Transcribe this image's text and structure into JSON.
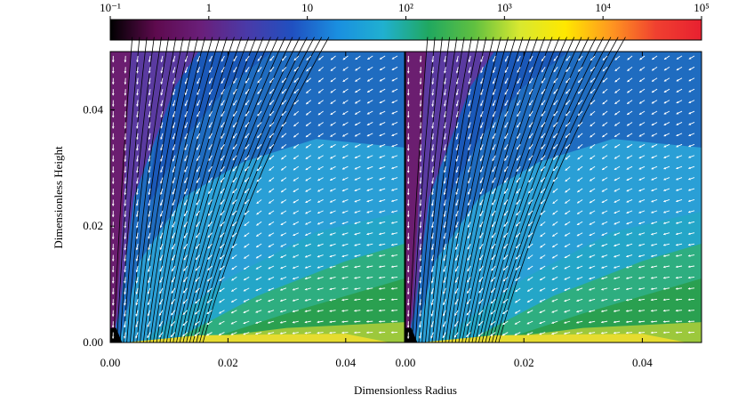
{
  "figure": {
    "xlabel": "Dimensionless Radius",
    "colorbar": {
      "scale": "log",
      "lim": [
        0.1,
        100000
      ],
      "ticks": [
        {
          "value": 0.1,
          "label": "10⁻¹"
        },
        1,
        10,
        {
          "value": 100,
          "label": "10²"
        },
        {
          "value": 1000,
          "label": "10³"
        },
        {
          "value": 10000,
          "label": "10⁴"
        },
        {
          "value": 100000,
          "label": "10⁵"
        }
      ],
      "colors": [
        "#000000",
        "#5e0a4e",
        "#6a1f7a",
        "#4a3aa8",
        "#2050c0",
        "#1a8fe0",
        "#20b0d0",
        "#20a860",
        "#60c040",
        "#d8e830",
        "#ffe800",
        "#ff9820",
        "#f04030",
        "#e82030"
      ]
    }
  },
  "chart_data": [
    {
      "type": "contour",
      "ylabel": "Dimensionless Height",
      "xlim": [
        0,
        0.05
      ],
      "ylim": [
        0,
        0.05
      ],
      "xticks": [
        {
          "value": 0,
          "label": "0.00"
        },
        {
          "value": 0.02,
          "label": "0.02"
        },
        {
          "value": 0.04,
          "label": "0.04"
        }
      ],
      "yticks": [
        {
          "value": 0,
          "label": "0.00"
        },
        {
          "value": 0.02,
          "label": "0.02"
        },
        {
          "value": 0.04,
          "label": "0.04"
        }
      ]
    },
    {
      "type": "contour",
      "xlim": [
        0,
        0.05
      ],
      "ylim": [
        0,
        0.05
      ],
      "xticks": [
        {
          "value": 0,
          "label": "0.00"
        },
        {
          "value": 0.02,
          "label": "0.02"
        },
        {
          "value": 0.04,
          "label": "0.04"
        }
      ]
    }
  ]
}
